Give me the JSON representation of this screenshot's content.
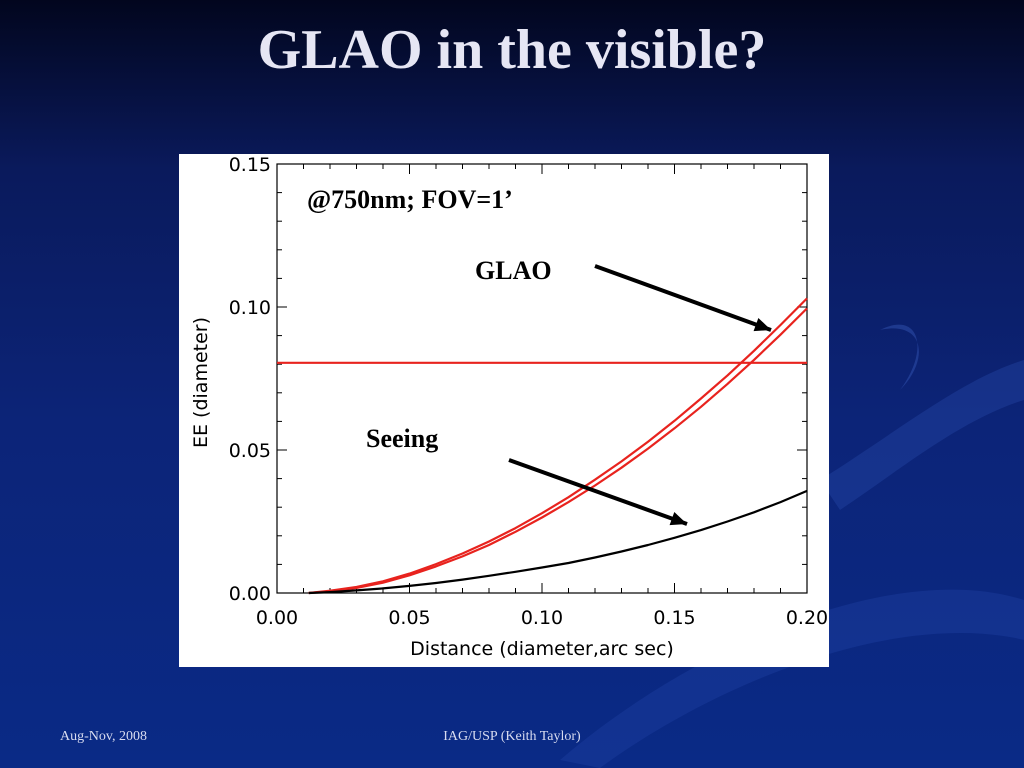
{
  "slide": {
    "title": "GLAO in the visible?",
    "footer_left": "Aug-Nov, 2008",
    "footer_center": "IAG/USP (Keith Taylor)"
  },
  "colors": {
    "title": "#e6e6f4",
    "glao": "#e8231e",
    "seeing": "#000000",
    "axis": "#000000"
  },
  "chart_data": {
    "type": "line",
    "title": "",
    "xlabel": "Distance (diameter,arc sec)",
    "ylabel": "EE (diameter)",
    "xlim": [
      0.0,
      0.2
    ],
    "ylim": [
      0.0,
      0.15
    ],
    "xticks": [
      0.0,
      0.05,
      0.1,
      0.15,
      0.2
    ],
    "xtick_labels": [
      "0.00",
      "0.05",
      "0.10",
      "0.15",
      "0.20"
    ],
    "yticks": [
      0.0,
      0.05,
      0.1,
      0.15
    ],
    "ytick_labels": [
      "0.00",
      "0.05",
      "0.10",
      "0.15"
    ],
    "grid": false,
    "series": [
      {
        "color": "#e8231e",
        "x": [
          0.012,
          0.02,
          0.03,
          0.04,
          0.05,
          0.06,
          0.07,
          0.08,
          0.09,
          0.1,
          0.11,
          0.12,
          0.13,
          0.14,
          0.15,
          0.16,
          0.17,
          0.18,
          0.19,
          0.2
        ],
        "y": [
          0.0,
          0.0006,
          0.0018,
          0.0036,
          0.0062,
          0.0093,
          0.0128,
          0.0168,
          0.0214,
          0.0264,
          0.0318,
          0.0376,
          0.0438,
          0.0505,
          0.0576,
          0.0651,
          0.0731,
          0.0815,
          0.0903,
          0.0995
        ]
      },
      {
        "color": "#e8231e",
        "x": [
          0.012,
          0.02,
          0.03,
          0.04,
          0.05,
          0.06,
          0.07,
          0.08,
          0.09,
          0.1,
          0.11,
          0.12,
          0.13,
          0.14,
          0.15,
          0.16,
          0.17,
          0.18,
          0.19,
          0.2
        ],
        "y": [
          0.0,
          0.0008,
          0.0021,
          0.0041,
          0.0068,
          0.0101,
          0.0138,
          0.018,
          0.0227,
          0.0279,
          0.0335,
          0.0396,
          0.046,
          0.0529,
          0.0602,
          0.068,
          0.0761,
          0.0847,
          0.0937,
          0.103
        ]
      },
      {
        "color": "#e8231e",
        "x": [
          0.0,
          0.2
        ],
        "y": [
          0.0805,
          0.0805
        ]
      },
      {
        "color": "#000000",
        "x": [
          0.012,
          0.02,
          0.03,
          0.04,
          0.05,
          0.06,
          0.07,
          0.08,
          0.09,
          0.1,
          0.11,
          0.12,
          0.13,
          0.14,
          0.15,
          0.16,
          0.17,
          0.18,
          0.19,
          0.2
        ],
        "y": [
          0.0,
          0.0003,
          0.0009,
          0.0016,
          0.0025,
          0.0035,
          0.0047,
          0.006,
          0.0074,
          0.0089,
          0.0105,
          0.0124,
          0.0145,
          0.0168,
          0.0193,
          0.022,
          0.025,
          0.0282,
          0.0318,
          0.0357
        ]
      }
    ],
    "annotations": [
      {
        "id": "fov",
        "text": "@750nm; FOV=1’"
      },
      {
        "id": "glao",
        "text": "GLAO"
      },
      {
        "id": "seeing",
        "text": "Seeing"
      }
    ]
  }
}
